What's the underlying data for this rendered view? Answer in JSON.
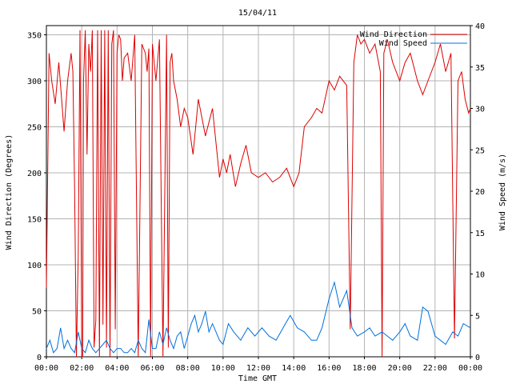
{
  "chart_data": {
    "type": "line",
    "title": "15/04/11",
    "xlabel": "Time GMT",
    "ylabel": "Wind Direction (Degrees)",
    "y2label": "Wind Speed (m/s)",
    "x_ticks": [
      "00:00",
      "02:00",
      "04:00",
      "06:00",
      "08:00",
      "10:00",
      "12:00",
      "14:00",
      "16:00",
      "18:00",
      "20:00",
      "22:00",
      "00:00"
    ],
    "xlim": [
      0,
      24
    ],
    "ylim": [
      0,
      360
    ],
    "y_ticks": [
      0,
      50,
      100,
      150,
      200,
      250,
      300,
      350
    ],
    "y2lim": [
      0,
      40
    ],
    "y2_ticks": [
      0,
      5,
      10,
      15,
      20,
      25,
      30,
      35,
      40
    ],
    "grid": true,
    "legend_position": "top-right",
    "series": [
      {
        "name": "Wind Direction",
        "axis": "left",
        "color": "#dd0000",
        "x": [
          0.0,
          0.15,
          0.3,
          0.5,
          0.7,
          1.0,
          1.2,
          1.4,
          1.5,
          1.6,
          1.7,
          1.8,
          1.9,
          2.0,
          2.05,
          2.1,
          2.2,
          2.3,
          2.4,
          2.5,
          2.6,
          2.7,
          2.8,
          2.9,
          3.0,
          3.1,
          3.2,
          3.3,
          3.4,
          3.5,
          3.6,
          3.7,
          3.8,
          3.9,
          4.0,
          4.1,
          4.2,
          4.3,
          4.4,
          4.6,
          4.8,
          5.0,
          5.2,
          5.4,
          5.6,
          5.7,
          5.8,
          5.9,
          6.0,
          6.2,
          6.4,
          6.6,
          6.8,
          6.9,
          7.0,
          7.1,
          7.2,
          7.4,
          7.6,
          7.8,
          8.0,
          8.3,
          8.6,
          9.0,
          9.4,
          9.8,
          10.0,
          10.2,
          10.4,
          10.7,
          11.0,
          11.3,
          11.6,
          12.0,
          12.4,
          12.8,
          13.2,
          13.6,
          14.0,
          14.3,
          14.6,
          15.0,
          15.3,
          15.6,
          16.0,
          16.3,
          16.6,
          17.0,
          17.2,
          17.4,
          17.6,
          17.8,
          18.0,
          18.3,
          18.6,
          18.9,
          19.0,
          19.1,
          19.3,
          19.6,
          20.0,
          20.3,
          20.6,
          21.0,
          21.3,
          21.6,
          22.0,
          22.3,
          22.6,
          22.9,
          23.1,
          23.3,
          23.5,
          23.7,
          23.9,
          24.0
        ],
        "values": [
          75,
          330,
          300,
          275,
          320,
          245,
          300,
          330,
          310,
          180,
          0,
          110,
          355,
          0,
          0,
          300,
          355,
          220,
          340,
          310,
          355,
          10,
          40,
          355,
          0,
          355,
          35,
          355,
          10,
          355,
          0,
          340,
          355,
          30,
          330,
          350,
          345,
          300,
          325,
          330,
          300,
          350,
          0,
          340,
          330,
          310,
          335,
          0,
          340,
          300,
          345,
          0,
          350,
          10,
          320,
          330,
          300,
          280,
          250,
          270,
          260,
          220,
          280,
          240,
          270,
          195,
          215,
          200,
          220,
          185,
          210,
          230,
          200,
          195,
          200,
          190,
          195,
          205,
          185,
          200,
          250,
          260,
          270,
          265,
          300,
          290,
          305,
          295,
          30,
          320,
          350,
          340,
          345,
          330,
          340,
          310,
          0,
          330,
          345,
          320,
          300,
          320,
          330,
          300,
          285,
          300,
          320,
          340,
          310,
          330,
          20,
          300,
          310,
          280,
          265,
          270
        ],
        "note": ""
      },
      {
        "name": "Wind Speed",
        "axis": "right",
        "color": "#0070dd",
        "x": [
          0.0,
          0.2,
          0.4,
          0.6,
          0.8,
          1.0,
          1.2,
          1.4,
          1.6,
          1.8,
          2.0,
          2.2,
          2.4,
          2.6,
          2.8,
          3.0,
          3.2,
          3.4,
          3.6,
          3.8,
          4.0,
          4.2,
          4.4,
          4.6,
          4.8,
          5.0,
          5.2,
          5.4,
          5.6,
          5.8,
          6.0,
          6.2,
          6.4,
          6.6,
          6.8,
          7.0,
          7.2,
          7.4,
          7.6,
          7.8,
          8.0,
          8.2,
          8.4,
          8.6,
          8.8,
          9.0,
          9.2,
          9.4,
          9.6,
          9.8,
          10.0,
          10.3,
          10.6,
          11.0,
          11.4,
          11.8,
          12.2,
          12.6,
          13.0,
          13.4,
          13.8,
          14.2,
          14.6,
          15.0,
          15.3,
          15.6,
          16.0,
          16.3,
          16.6,
          17.0,
          17.3,
          17.6,
          18.0,
          18.3,
          18.6,
          19.0,
          19.3,
          19.6,
          20.0,
          20.3,
          20.6,
          21.0,
          21.3,
          21.6,
          22.0,
          22.3,
          22.6,
          23.0,
          23.3,
          23.6,
          24.0
        ],
        "values": [
          1,
          2,
          0.5,
          1,
          3.5,
          1,
          2,
          1,
          0.5,
          3,
          1,
          0.5,
          2,
          1,
          0.5,
          1,
          1.5,
          2,
          1,
          0.5,
          1,
          1,
          0.5,
          0.5,
          1,
          0.5,
          2,
          1,
          0.5,
          4.5,
          1,
          1,
          3,
          1.5,
          3.5,
          2,
          1,
          2.5,
          3,
          1,
          2.5,
          4,
          5,
          3,
          4,
          5.5,
          3,
          4,
          3,
          2,
          1.5,
          4,
          3,
          2,
          3.5,
          2.5,
          3.5,
          2.5,
          2,
          3.5,
          5,
          3.5,
          3,
          2,
          2,
          3.5,
          7,
          9,
          6,
          8,
          3.5,
          2.5,
          3,
          3.5,
          2.5,
          3,
          2.5,
          2,
          3,
          4,
          2.5,
          2,
          6,
          5.5,
          2.5,
          2,
          1.5,
          3,
          2.5,
          4,
          3.5
        ]
      }
    ]
  }
}
